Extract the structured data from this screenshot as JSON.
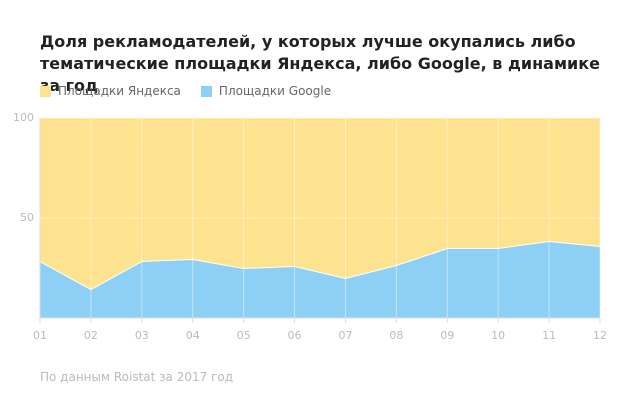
{
  "chart_data": {
    "type": "stacked_area",
    "title": "Доля рекламодателей, у которых лучше окупались либо тематические площадки Яндекса, либо Google, в динамике за год",
    "categories": [
      "01",
      "02",
      "03",
      "04",
      "05",
      "06",
      "07",
      "08",
      "09",
      "10",
      "11",
      "12"
    ],
    "series": [
      {
        "name": "Площадки Google",
        "color": "#8ecff5",
        "values": [
          28.5,
          14.5,
          28.5,
          29.5,
          25,
          26,
          20,
          26.5,
          35,
          35,
          38.5,
          36
        ]
      },
      {
        "name": "Площадки Яндекса",
        "color": "#fde38f",
        "values": [
          71.5,
          85.5,
          71.5,
          70.5,
          75,
          74,
          80,
          73.5,
          65,
          65,
          61.5,
          64
        ]
      }
    ],
    "legend_order": [
      1,
      0
    ],
    "ylim": [
      0,
      100
    ],
    "yticks": [
      50,
      100
    ],
    "grid": true,
    "source": "По данным Roistat за 2017 год"
  }
}
